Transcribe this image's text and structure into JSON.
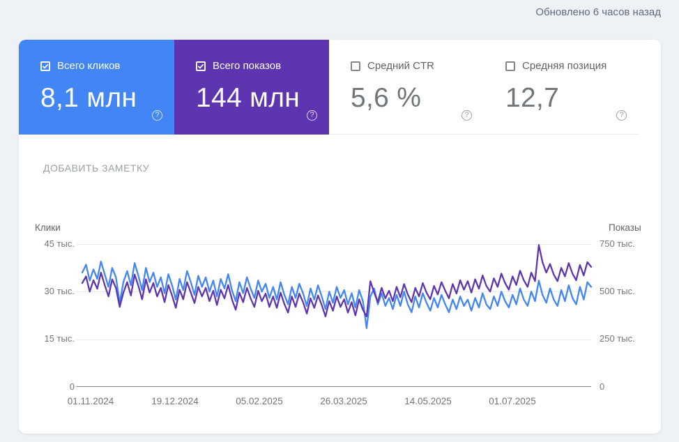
{
  "header": {
    "updated": "Обновлено 6 часов назад"
  },
  "icons": {
    "help_glyph": "?"
  },
  "metrics": {
    "cards": [
      {
        "id": "clicks",
        "label": "Всего кликов",
        "value": "8,1 млн",
        "checked": true,
        "bg": "#4285f4"
      },
      {
        "id": "impressions",
        "label": "Всего показов",
        "value": "144 млн",
        "checked": true,
        "bg": "#5e35b1"
      },
      {
        "id": "ctr",
        "label": "Средний CTR",
        "value": "5,6 %",
        "checked": false,
        "bg": "#ffffff"
      },
      {
        "id": "position",
        "label": "Средняя позиция",
        "value": "12,7",
        "checked": false,
        "bg": "#ffffff"
      }
    ]
  },
  "add_note_label": "ДОБАВИТЬ ЗАМЕТКУ",
  "chart_data": {
    "type": "line",
    "left_axis": {
      "title": "Клики",
      "ticks": [
        "0",
        "15 тыс.",
        "30 тыс.",
        "45 тыс."
      ],
      "range_thousands": [
        0,
        45
      ]
    },
    "right_axis": {
      "title": "Показы",
      "ticks": [
        "0",
        "250 тыс.",
        "500 тыс.",
        "750 тыс."
      ],
      "range_thousands": [
        0,
        750
      ]
    },
    "x_ticks": [
      "01.11.2024",
      "19.12.2024",
      "05.02.2025",
      "26.03.2025",
      "14.05.2025",
      "01.07.2025"
    ],
    "grid": true,
    "legend_position": "none",
    "series": [
      {
        "name": "Клики",
        "axis": "left",
        "unit": "тыс.",
        "color": "#4285f4",
        "values": [
          36,
          38.5,
          33.5,
          37,
          34,
          39.5,
          35.5,
          31.5,
          37.5,
          34.5,
          26.5,
          33,
          36.5,
          32,
          39,
          35,
          30.5,
          37.5,
          33,
          36,
          31.5,
          34.5,
          29.5,
          35.5,
          32,
          27.5,
          34,
          30.5,
          36.5,
          33,
          29,
          35,
          31.5,
          34.5,
          30,
          33.5,
          28.5,
          34,
          31,
          35.5,
          30.5,
          27,
          33,
          29.5,
          34.5,
          31,
          28,
          33.5,
          30,
          32.5,
          28,
          31.5,
          27.5,
          33,
          29,
          26,
          31.5,
          28,
          32.5,
          29.5,
          25.5,
          31,
          27.5,
          32,
          28.5,
          24.5,
          30,
          26.5,
          31.5,
          28,
          30.5,
          26,
          29.5,
          25,
          30.5,
          27,
          18.5,
          28.5,
          31,
          26,
          29.5,
          25.5,
          28,
          24.5,
          29,
          25.5,
          30,
          26,
          23.5,
          28.5,
          25,
          29.5,
          26.5,
          24,
          28,
          25,
          29,
          26,
          23.5,
          27.5,
          24.5,
          28.5,
          25.5,
          27.5,
          24,
          28,
          25,
          29.5,
          26,
          24.5,
          28.5,
          25.5,
          30,
          27,
          25,
          29,
          26,
          31,
          27.5,
          25.5,
          30,
          27,
          33.5,
          29,
          26.5,
          31,
          27.5,
          25.5,
          30.5,
          27,
          32,
          28,
          26,
          31.5,
          27.5,
          33,
          31.5
        ]
      },
      {
        "name": "Показы",
        "axis": "right",
        "unit": "тыс.",
        "color": "#5e35b1",
        "values": [
          545,
          580,
          500,
          560,
          515,
          600,
          535,
          475,
          565,
          520,
          420,
          495,
          550,
          480,
          590,
          530,
          460,
          565,
          495,
          545,
          475,
          520,
          445,
          535,
          480,
          415,
          510,
          460,
          550,
          495,
          440,
          525,
          475,
          520,
          450,
          505,
          430,
          510,
          465,
          535,
          460,
          405,
          495,
          445,
          520,
          465,
          420,
          505,
          450,
          490,
          420,
          475,
          415,
          495,
          435,
          390,
          475,
          420,
          490,
          445,
          385,
          465,
          415,
          480,
          430,
          370,
          450,
          400,
          475,
          420,
          460,
          390,
          445,
          375,
          460,
          405,
          370,
          555,
          495,
          445,
          520,
          465,
          505,
          450,
          525,
          470,
          540,
          485,
          445,
          520,
          475,
          545,
          495,
          460,
          530,
          485,
          550,
          505,
          465,
          540,
          490,
          560,
          510,
          555,
          495,
          565,
          515,
          585,
          530,
          500,
          570,
          525,
          595,
          545,
          510,
          580,
          535,
          610,
          560,
          525,
          600,
          555,
          745,
          655,
          600,
          645,
          590,
          555,
          625,
          580,
          650,
          595,
          560,
          640,
          585,
          655,
          630
        ]
      }
    ]
  }
}
